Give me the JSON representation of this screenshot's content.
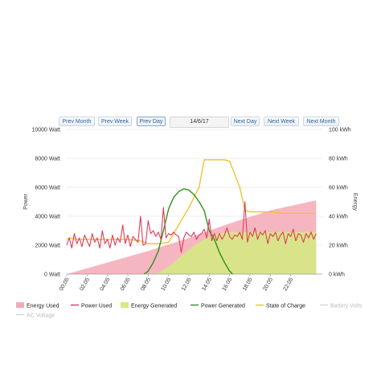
{
  "nav": {
    "prev_month": "Prev Month",
    "prev_week": "Prev Week",
    "prev_day": "Prev Day",
    "date": "14/6/17",
    "next_day": "Next Day",
    "next_week": "Next Week",
    "next_month": "Next Month"
  },
  "colors": {
    "energy_used_fill": "#f4a9b6",
    "power_used": "#e03c58",
    "energy_generated_fill": "#d4ec80",
    "power_generated": "#2f8f1f",
    "state_of_charge": "#f1c232",
    "battery_volts": "#d4d4d4",
    "ac_voltage": "#d4d4d4"
  },
  "chart_data": {
    "type": "line",
    "left_axis": {
      "title": "Power",
      "ticks": [
        "0 Watt",
        "2000 Watt",
        "4000 Watt",
        "6000 Watt",
        "8000 Watt",
        "10000 Watt"
      ],
      "range": [
        0,
        10000
      ]
    },
    "right_axis": {
      "title": "Energy",
      "ticks": [
        "0 kWh",
        "20 kWh",
        "40 kWh",
        "60 kWh",
        "80 kWh",
        "100 kWh"
      ],
      "range": [
        0,
        100
      ]
    },
    "x_ticks": [
      "00:05",
      "02:05",
      "04:05",
      "06:05",
      "08:05",
      "10:05",
      "12:05",
      "14:05",
      "16:05",
      "18:05",
      "20:05",
      "22:05"
    ],
    "x_range": [
      0,
      24
    ],
    "grid": true,
    "legend_position": "bottom",
    "legend": [
      {
        "label": "Energy Used",
        "swatch": "area",
        "color": "#f4a9b6"
      },
      {
        "label": "Power Used",
        "swatch": "line",
        "color": "#e03c58"
      },
      {
        "label": "Energy Generated",
        "swatch": "area",
        "color": "#d4ec80"
      },
      {
        "label": "Power Generated",
        "swatch": "line",
        "color": "#2f8f1f"
      },
      {
        "label": "State of Charge",
        "swatch": "line",
        "color": "#f1c232"
      },
      {
        "label": "Battery Volts",
        "swatch": "line",
        "color": "#d4d4d4"
      },
      {
        "label": "AC Voltage",
        "swatch": "line",
        "color": "#d4d4d4"
      }
    ],
    "series": [
      {
        "name": "Energy Used",
        "axis": "right",
        "kind": "area",
        "x": [
          0,
          8,
          12,
          16,
          20,
          24.5
        ],
        "y": [
          0,
          16,
          25,
          35,
          44,
          51
        ]
      },
      {
        "name": "Energy Generated",
        "axis": "right",
        "kind": "area",
        "x": [
          0,
          7.8,
          9,
          10,
          11,
          12,
          13,
          14,
          15,
          16,
          24.5
        ],
        "y": [
          0,
          0,
          1,
          5,
          11,
          17,
          22,
          26,
          28,
          29,
          29
        ]
      },
      {
        "name": "State of Charge",
        "axis": "right",
        "kind": "line",
        "x": [
          0,
          0.3,
          1,
          6,
          7.2,
          8,
          9,
          10,
          11,
          12,
          12.5,
          13,
          13.5,
          14.5,
          15,
          15.5,
          16,
          17,
          17.5,
          18,
          19,
          20,
          21,
          22,
          23,
          24.5
        ],
        "y": [
          24,
          25,
          24,
          24,
          23,
          21,
          21,
          22,
          34,
          46,
          53,
          60,
          79,
          79,
          79,
          79,
          78,
          60,
          44,
          43,
          43,
          43,
          42,
          42,
          42,
          42
        ]
      },
      {
        "name": "Power Generated",
        "axis": "left",
        "kind": "line",
        "x": [
          7.6,
          8,
          8.5,
          9,
          9.5,
          10,
          10.5,
          11,
          11.5,
          12,
          12.5,
          13,
          13.5,
          14,
          14.5,
          15,
          15.5,
          16,
          16.3
        ],
        "y": [
          0,
          200,
          800,
          1600,
          3000,
          4500,
          5300,
          5700,
          5900,
          5800,
          5500,
          5000,
          4400,
          3000,
          2400,
          1500,
          800,
          200,
          0
        ]
      },
      {
        "name": "Power Used",
        "axis": "left",
        "kind": "line",
        "x": [
          0,
          0.25,
          0.5,
          0.75,
          1,
          1.25,
          1.5,
          1.75,
          2,
          2.25,
          2.5,
          2.75,
          3,
          3.25,
          3.5,
          3.75,
          4,
          4.25,
          4.5,
          4.75,
          5,
          5.25,
          5.5,
          5.75,
          6,
          6.25,
          6.5,
          6.75,
          7,
          7.25,
          7.5,
          7.75,
          8,
          8.25,
          8.5,
          8.75,
          9,
          9.25,
          9.5,
          9.75,
          10,
          10.25,
          10.5,
          10.75,
          11,
          11.25,
          11.5,
          11.75,
          12,
          12.25,
          12.5,
          12.75,
          13,
          13.25,
          13.5,
          13.75,
          14,
          14.25,
          14.5,
          14.75,
          15,
          15.25,
          15.5,
          15.75,
          16,
          16.25,
          16.5,
          16.75,
          17,
          17.25,
          17.5,
          17.75,
          18,
          18.25,
          18.5,
          18.75,
          19,
          19.25,
          19.5,
          19.75,
          20,
          20.25,
          20.5,
          20.75,
          21,
          21.25,
          21.5,
          21.75,
          22,
          22.25,
          22.5,
          22.75,
          23,
          23.25,
          23.5,
          23.75,
          24,
          24.25,
          24.5
        ],
        "y": [
          2000,
          2500,
          1800,
          2800,
          2100,
          2500,
          1900,
          2700,
          2300,
          1900,
          2800,
          2200,
          2500,
          1800,
          3000,
          2100,
          2400,
          1800,
          2700,
          2000,
          2500,
          2200,
          3400,
          2100,
          2700,
          1900,
          2600,
          2400,
          2200,
          4000,
          2000,
          2100,
          3700,
          2800,
          3000,
          2600,
          2900,
          2400,
          4600,
          2500,
          2800,
          2700,
          2900,
          2700,
          2600,
          1500,
          2500,
          2900,
          2700,
          2600,
          2900,
          2400,
          2700,
          2800,
          3100,
          2500,
          3800,
          2300,
          2800,
          2300,
          2800,
          2400,
          2700,
          3200,
          2600,
          2400,
          2700,
          2600,
          2900,
          2400,
          5000,
          2200,
          2900,
          2600,
          3200,
          2400,
          2900,
          2700,
          3000,
          2100,
          2800,
          2600,
          2900,
          2300,
          2700,
          2900,
          2100,
          2800,
          2600,
          3100,
          2300,
          2800,
          2700,
          2200,
          2800,
          2500,
          2900,
          2400,
          2800
        ]
      }
    ]
  }
}
